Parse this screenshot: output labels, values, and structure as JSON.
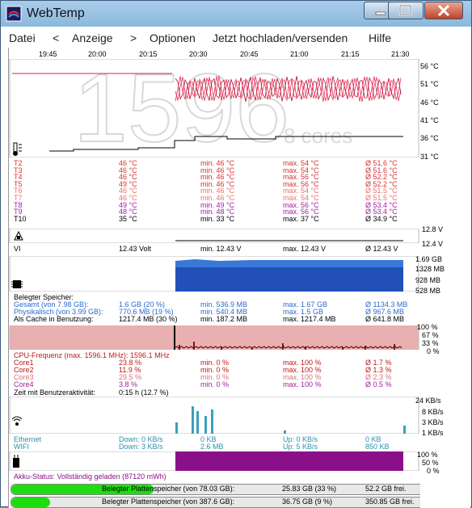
{
  "window": {
    "title": "WebTemp"
  },
  "menu": [
    "Datei",
    "<",
    "Anzeige",
    ">",
    "Optionen",
    "Jetzt hochladen/versenden",
    "Hilfe"
  ],
  "time_axis": [
    "19:45",
    "20:00",
    "20:15",
    "20:30",
    "20:45",
    "21:00",
    "21:15",
    "21:30"
  ],
  "temp_axis": [
    "56 °C",
    "51 °C",
    "46 °C",
    "41 °C",
    "36 °C",
    "31 °C"
  ],
  "overlay": {
    "number": "1596",
    "cores": "8 cores"
  },
  "temps": [
    {
      "name": "T2",
      "cur": "46 °C",
      "min": "min. 46 °C",
      "max": "max. 54 °C",
      "avg": "Ø 51.6 °C",
      "color": "#d83030"
    },
    {
      "name": "T3",
      "cur": "46 °C",
      "min": "min. 46 °C",
      "max": "max. 54 °C",
      "avg": "Ø 51.6 °C",
      "color": "#d83030"
    },
    {
      "name": "T4",
      "cur": "46 °C",
      "min": "min. 46 °C",
      "max": "max. 56 °C",
      "avg": "Ø 52.2 °C",
      "color": "#d83030"
    },
    {
      "name": "T5",
      "cur": "49 °C",
      "min": "min. 46 °C",
      "max": "max. 56 °C",
      "avg": "Ø 52.2 °C",
      "color": "#d83030"
    },
    {
      "name": "T6",
      "cur": "46 °C",
      "min": "min. 46 °C",
      "max": "max. 54 °C",
      "avg": "Ø 51.5 °C",
      "color": "#ee7070"
    },
    {
      "name": "T7",
      "cur": "46 °C",
      "min": "min. 46 °C",
      "max": "max. 54 °C",
      "avg": "Ø 51.5 °C",
      "color": "#ee7070"
    },
    {
      "name": "T8",
      "cur": "49 °C",
      "min": "min. 49 °C",
      "max": "max. 56 °C",
      "avg": "Ø 53.4 °C",
      "color": "#a020a0"
    },
    {
      "name": "T9",
      "cur": "48 °C",
      "min": "min. 48 °C",
      "max": "max. 56 °C",
      "avg": "Ø 53.4 °C",
      "color": "#a020a0"
    },
    {
      "name": "T10",
      "cur": "35 °C",
      "min": "min. 33 °C",
      "max": "max. 37 °C",
      "avg": "Ø 34.9 °C",
      "color": "#000000"
    }
  ],
  "volt_axis": [
    "12.8 V",
    "12.4 V"
  ],
  "volt": {
    "name": "VI",
    "cur": "12.43 Volt",
    "min": "min. 12.43 V",
    "max": "max. 12.43 V",
    "avg": "Ø 12.43 V"
  },
  "mem_axis": [
    "1.69 GB",
    "1328 MB",
    "928 MB",
    "528 MB"
  ],
  "mem": [
    {
      "label": "Belegter Speicher:",
      "cur": "",
      "min": "",
      "max": "",
      "avg": "",
      "color": "#000000"
    },
    {
      "label": "Gesamt (von 7.98 GB):",
      "cur": "1.6 GB (20 %)",
      "min": "min. 536.9 MB",
      "max": "max. 1.67 GB",
      "avg": "Ø 1134.3 MB",
      "color": "#2a6ad0"
    },
    {
      "label": "Physikalisch (von 3.99 GB):",
      "cur": "770.6 MB (19 %)",
      "min": "min. 540.4 MB",
      "max": "max. 1.5 GB",
      "avg": "Ø 967.6 MB",
      "color": "#2a6ad0"
    },
    {
      "label": "Als Cache in Benutzung:",
      "cur": "1217.4 MB (30 %)",
      "min": "min. 187.2 MB",
      "max": "max. 1217.4 MB",
      "avg": "Ø 641.8 MB",
      "color": "#000000"
    }
  ],
  "cpu_axis": [
    "100 %",
    "67 %",
    "33 %",
    "0 %"
  ],
  "cpu_header": "CPU-Frequenz (max. 1596.1 MHz): 1596.1 MHz",
  "cpu": [
    {
      "name": "Core1",
      "cur": "23.8 %",
      "min": "min. 0 %",
      "max": "max. 100 %",
      "avg": "Ø 1.7 %",
      "color": "#c01818"
    },
    {
      "name": "Core2",
      "cur": "11.9 %",
      "min": "min. 0 %",
      "max": "max. 100 %",
      "avg": "Ø 1.3 %",
      "color": "#c01818"
    },
    {
      "name": "Core3",
      "cur": "29.5 %",
      "min": "min. 0 %",
      "max": "max. 100 %",
      "avg": "Ø 2.3 %",
      "color": "#e07070"
    },
    {
      "name": "Core4",
      "cur": "3.8 %",
      "min": "min. 0 %",
      "max": "max. 100 %",
      "avg": "Ø 0.5 %",
      "color": "#a020a0"
    }
  ],
  "user_activity": "Zeit mit Benutzeraktivität:",
  "user_activity_value": "0:15 h (12.7 %)",
  "net_axis": [
    "24 KB/s",
    "8 KB/s",
    "3 KB/s",
    "1 KB/s"
  ],
  "net": [
    {
      "name": "Ethernet",
      "down": "Down: 0 KB/s",
      "total": "0 KB",
      "up": "Up: 0 KB/s",
      "upt": "0 KB"
    },
    {
      "name": "WIFI",
      "down": "Down: 3 KB/s",
      "total": "2.6 MB",
      "up": "Up: 5 KB/s",
      "upt": "850 KB"
    }
  ],
  "batt_axis": [
    "100 %",
    "50 %",
    "0 %"
  ],
  "battery_status": "Akku-Status: Vollständig geladen (87120 mWh)",
  "disks": [
    {
      "label": "Belegter Plattenspeicher (von 78.03 GB):",
      "used": "25.83 GB (33 %)",
      "free": "52.2 GB frei.",
      "fill": 0.33
    },
    {
      "label": "Belegter Plattenspeicher (von 387.6 GB):",
      "used": "36.75 GB (9 %)",
      "free": "350.85 GB frei.",
      "fill": 0.09
    }
  ],
  "colors": {
    "temp_red": "#d82040",
    "memory_blue": "#2a6ad0",
    "cpu_bg": "#e8b0b0",
    "battery": "#8a108a",
    "net_bar": "#3aa0c0"
  }
}
